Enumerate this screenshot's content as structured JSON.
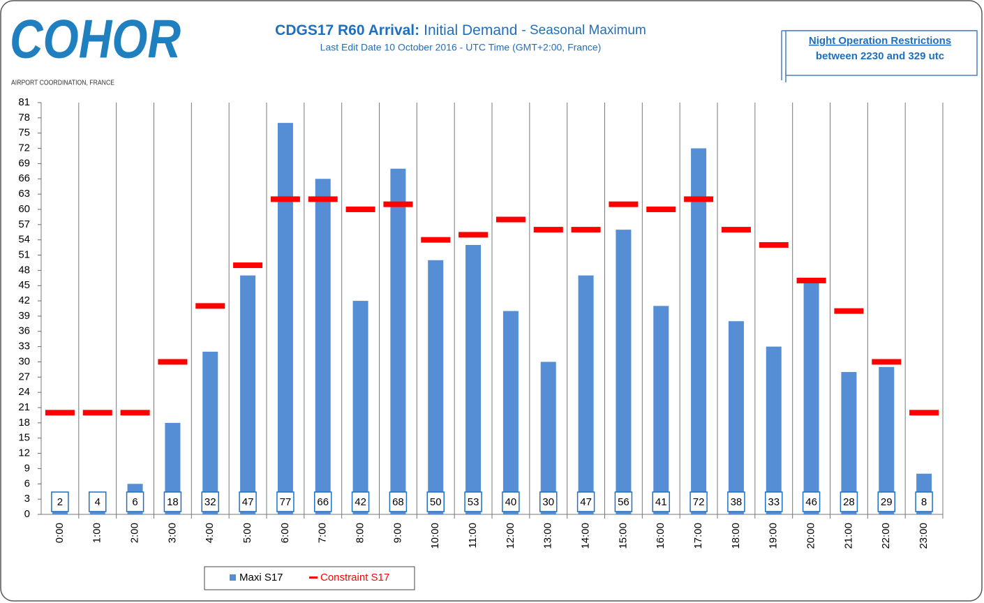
{
  "chart_data": {
    "type": "bar_line",
    "logo": "COHOR",
    "logo_caption": "AIRPORT COORDINATION, FRANCE",
    "title_parts": [
      "CDGS17 R60 Arrival:",
      "Initial Demand",
      "- Seasonal Maximum"
    ],
    "subtitle": "Last Edit Date  10 October 2016 - UTC Time (GMT+2:00, France)",
    "note": [
      "Night Operation Restrictions",
      "between 2230 and 329 utc"
    ],
    "categories": [
      "0:00",
      "1:00",
      "2:00",
      "3:00",
      "4:00",
      "5:00",
      "6:00",
      "7:00",
      "8:00",
      "9:00",
      "10:00",
      "11:00",
      "12:00",
      "13:00",
      "14:00",
      "15:00",
      "16:00",
      "17:00",
      "18:00",
      "19:00",
      "20:00",
      "21:00",
      "22:00",
      "23:00"
    ],
    "series": [
      {
        "name": "Maxi S17",
        "color": "#558ed5",
        "kind": "bar",
        "values": [
          2,
          4,
          6,
          18,
          32,
          47,
          77,
          66,
          42,
          68,
          50,
          53,
          40,
          30,
          47,
          56,
          41,
          72,
          38,
          33,
          46,
          28,
          29,
          8
        ]
      },
      {
        "name": "Constraint S17",
        "color": "#ff0000",
        "kind": "dash",
        "values": [
          20,
          20,
          20,
          30,
          41,
          49,
          62,
          62,
          60,
          61,
          54,
          55,
          58,
          56,
          56,
          61,
          60,
          62,
          56,
          53,
          46,
          40,
          30,
          20
        ]
      }
    ],
    "ylim": [
      0,
      81
    ],
    "yticks": [
      0,
      3,
      6,
      9,
      12,
      15,
      18,
      21,
      24,
      27,
      30,
      33,
      36,
      39,
      42,
      45,
      48,
      51,
      54,
      57,
      60,
      63,
      66,
      69,
      72,
      75,
      78,
      81
    ],
    "grid": "vertical",
    "legend": "bottom"
  }
}
